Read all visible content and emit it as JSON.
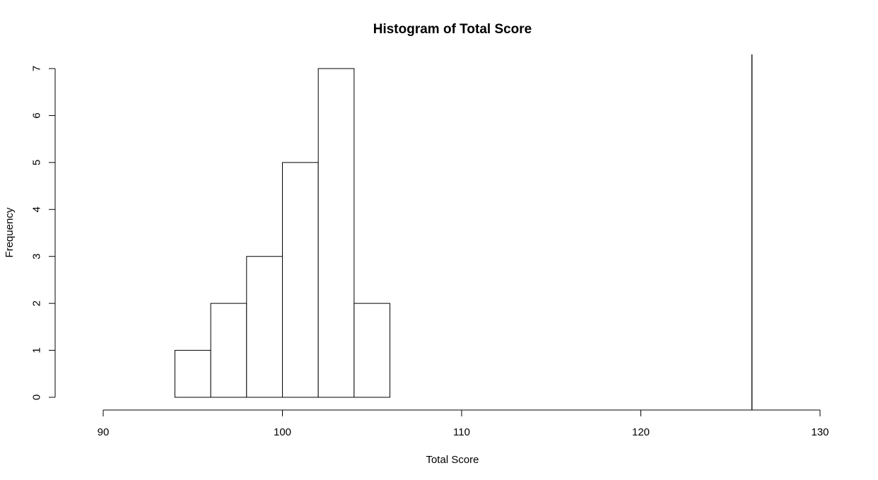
{
  "chart_data": {
    "type": "bar",
    "title": "Histogram of Total Score",
    "xlabel": "Total Score",
    "ylabel": "Frequency",
    "xlim": [
      90,
      130
    ],
    "ylim": [
      0,
      7
    ],
    "x_ticks": [
      90,
      100,
      110,
      120,
      130
    ],
    "y_ticks": [
      0,
      1,
      2,
      3,
      4,
      5,
      6,
      7
    ],
    "bins": [
      {
        "from": 94,
        "to": 96,
        "count": 1
      },
      {
        "from": 96,
        "to": 98,
        "count": 2
      },
      {
        "from": 98,
        "to": 100,
        "count": 3
      },
      {
        "from": 100,
        "to": 102,
        "count": 5
      },
      {
        "from": 102,
        "to": 104,
        "count": 7
      },
      {
        "from": 104,
        "to": 106,
        "count": 2
      }
    ],
    "vertical_line_x": 126.2
  }
}
